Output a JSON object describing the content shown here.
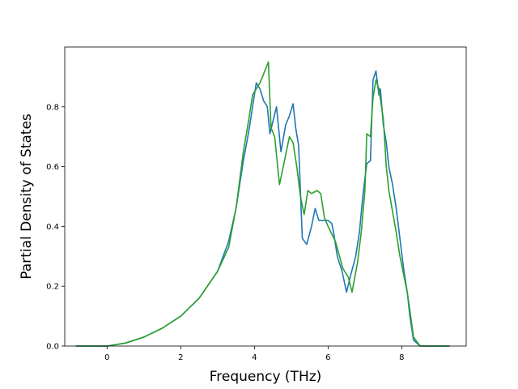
{
  "chart_data": {
    "type": "line",
    "title": "",
    "xlabel": "Frequency (THz)",
    "ylabel": "Partial Density of States",
    "xlim": [
      -1.15,
      9.75
    ],
    "ylim": [
      0.0,
      1.0
    ],
    "xticks": [
      0,
      2,
      4,
      6,
      8
    ],
    "yticks": [
      0.0,
      0.2,
      0.4,
      0.6,
      0.8
    ],
    "grid": false,
    "legend": "none",
    "series": [
      {
        "color": "#1f77b4",
        "x": [
          -0.85,
          0.0,
          0.5,
          1.0,
          1.5,
          2.0,
          2.5,
          3.0,
          3.3,
          3.5,
          3.7,
          3.85,
          3.95,
          4.05,
          4.15,
          4.25,
          4.35,
          4.42,
          4.5,
          4.6,
          4.72,
          4.85,
          4.95,
          5.05,
          5.12,
          5.2,
          5.3,
          5.42,
          5.55,
          5.65,
          5.75,
          5.85,
          6.0,
          6.1,
          6.15,
          6.25,
          6.38,
          6.5,
          6.62,
          6.75,
          6.85,
          6.95,
          7.05,
          7.15,
          7.22,
          7.3,
          7.38,
          7.42,
          7.5,
          7.58,
          7.65,
          7.75,
          7.85,
          7.95,
          8.05,
          8.15,
          8.22,
          8.32,
          8.5,
          8.6,
          9.3
        ],
        "y": [
          0.0,
          0.0,
          0.01,
          0.03,
          0.06,
          0.1,
          0.16,
          0.25,
          0.35,
          0.46,
          0.62,
          0.72,
          0.8,
          0.88,
          0.86,
          0.82,
          0.8,
          0.71,
          0.75,
          0.8,
          0.65,
          0.74,
          0.77,
          0.81,
          0.73,
          0.67,
          0.36,
          0.34,
          0.4,
          0.46,
          0.42,
          0.42,
          0.42,
          0.41,
          0.38,
          0.3,
          0.25,
          0.18,
          0.24,
          0.3,
          0.38,
          0.51,
          0.61,
          0.62,
          0.89,
          0.92,
          0.84,
          0.86,
          0.74,
          0.68,
          0.6,
          0.54,
          0.46,
          0.36,
          0.26,
          0.18,
          0.1,
          0.02,
          0.0,
          0.0,
          0.0
        ]
      },
      {
        "color": "#2ca02c",
        "x": [
          -0.85,
          0.0,
          0.5,
          1.0,
          1.5,
          2.0,
          2.5,
          3.0,
          3.3,
          3.5,
          3.7,
          3.85,
          3.95,
          4.05,
          4.15,
          4.25,
          4.38,
          4.45,
          4.55,
          4.68,
          4.75,
          4.85,
          4.95,
          5.05,
          5.15,
          5.25,
          5.35,
          5.45,
          5.55,
          5.7,
          5.8,
          5.9,
          6.0,
          6.2,
          6.4,
          6.55,
          6.65,
          6.8,
          6.9,
          7.0,
          7.05,
          7.15,
          7.22,
          7.3,
          7.38,
          7.5,
          7.58,
          7.65,
          7.75,
          7.85,
          7.95,
          8.05,
          8.15,
          8.22,
          8.32,
          8.5,
          8.6,
          9.3
        ],
        "y": [
          0.0,
          0.0,
          0.01,
          0.03,
          0.06,
          0.1,
          0.16,
          0.25,
          0.33,
          0.46,
          0.65,
          0.76,
          0.84,
          0.86,
          0.88,
          0.91,
          0.95,
          0.73,
          0.7,
          0.54,
          0.58,
          0.64,
          0.7,
          0.68,
          0.6,
          0.5,
          0.44,
          0.52,
          0.51,
          0.52,
          0.51,
          0.43,
          0.4,
          0.35,
          0.26,
          0.23,
          0.18,
          0.28,
          0.38,
          0.52,
          0.71,
          0.7,
          0.83,
          0.89,
          0.86,
          0.76,
          0.6,
          0.52,
          0.45,
          0.38,
          0.3,
          0.24,
          0.18,
          0.12,
          0.03,
          0.0,
          0.0,
          0.0
        ]
      }
    ]
  }
}
